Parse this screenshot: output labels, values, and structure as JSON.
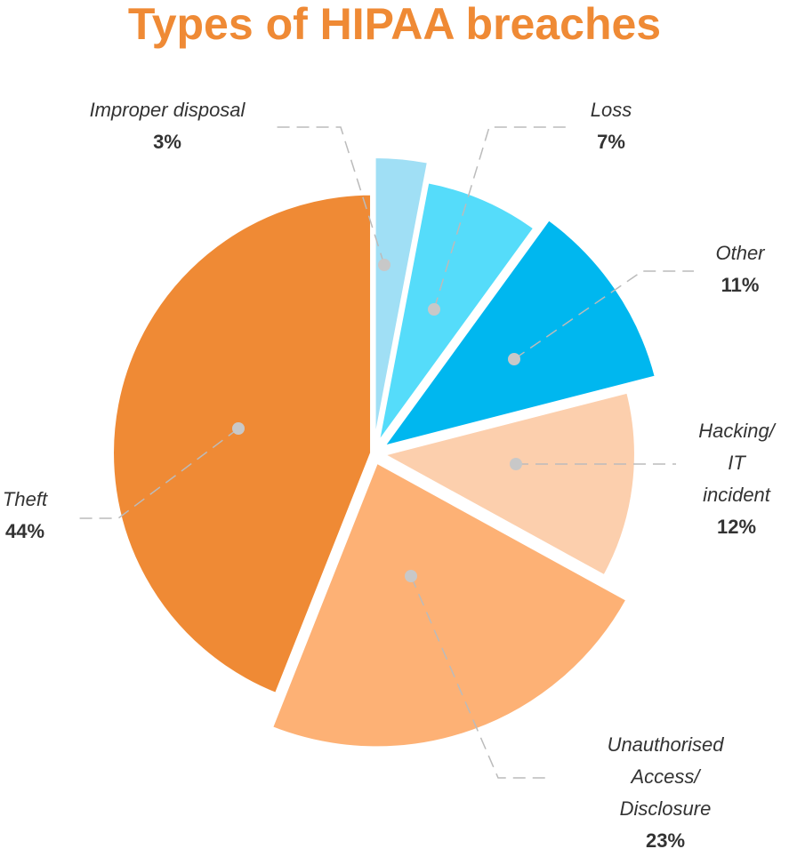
{
  "chart_data": {
    "type": "pie",
    "title": "Types of HIPAA breaches",
    "categories": [
      "Improper disposal",
      "Loss",
      "Other",
      "Hacking/\nIT incident",
      "Unauthorised Access/\nDisclosure",
      "Theft"
    ],
    "values": [
      3,
      7,
      11,
      12,
      23,
      44
    ],
    "value_labels": [
      "3%",
      "7%",
      "11%",
      "12%",
      "23%",
      "44%"
    ],
    "colors": [
      "#a0dff5",
      "#55dcfa",
      "#00b7ef",
      "#fccfad",
      "#fdb175",
      "#ef8a35"
    ],
    "title_color": "#ef8a35"
  }
}
